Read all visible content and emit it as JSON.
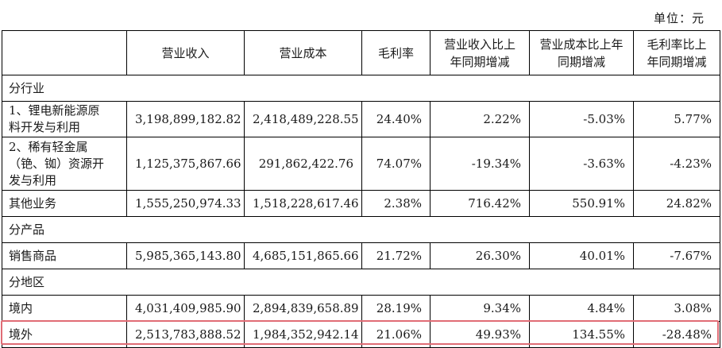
{
  "unit_note": "单位：元",
  "headers": {
    "col0": "",
    "col1": "营业收入",
    "col2": "营业成本",
    "col3": "毛利率",
    "col4": "营业收入比上年同期增减",
    "col5": "营业成本比上年同期增减",
    "col6": "毛利率比上年同期增减"
  },
  "sections": {
    "industry": {
      "title": "分行业",
      "rows": [
        {
          "label": "1、锂电新能源原\n料开发与利用",
          "revenue": "3,198,899,182.82",
          "cost": "2,418,489,228.55",
          "margin": "24.40%",
          "rev_change": "2.22%",
          "cost_change": "-5.03%",
          "margin_change": "5.77%"
        },
        {
          "label": "2、稀有轻金属\n（铯、铷）资源开\n发与利用",
          "revenue": "1,125,375,867.66",
          "cost": "291,862,422.76",
          "margin": "74.07%",
          "rev_change": "-19.34%",
          "cost_change": "-3.63%",
          "margin_change": "-4.23%"
        },
        {
          "label": "其他业务",
          "revenue": "1,555,250,974.33",
          "cost": "1,518,228,617.46",
          "margin": "2.38%",
          "rev_change": "716.42%",
          "cost_change": "550.91%",
          "margin_change": "24.82%"
        }
      ]
    },
    "product": {
      "title": "分产品",
      "rows": [
        {
          "label": "销售商品",
          "revenue": "5,985,365,143.80",
          "cost": "4,685,151,865.66",
          "margin": "21.72%",
          "rev_change": "26.30%",
          "cost_change": "40.01%",
          "margin_change": "-7.67%"
        }
      ]
    },
    "region": {
      "title": "分地区",
      "rows": [
        {
          "label": "境内",
          "revenue": "4,031,409,985.90",
          "cost": "2,894,839,658.89",
          "margin": "28.19%",
          "rev_change": "9.34%",
          "cost_change": "4.84%",
          "margin_change": "3.08%"
        },
        {
          "label": "境外",
          "revenue": "2,513,783,888.52",
          "cost": "1,984,352,942.14",
          "margin": "21.06%",
          "rev_change": "49.93%",
          "cost_change": "134.55%",
          "margin_change": "-28.48%"
        }
      ]
    }
  },
  "highlight_color": "#e06c75"
}
